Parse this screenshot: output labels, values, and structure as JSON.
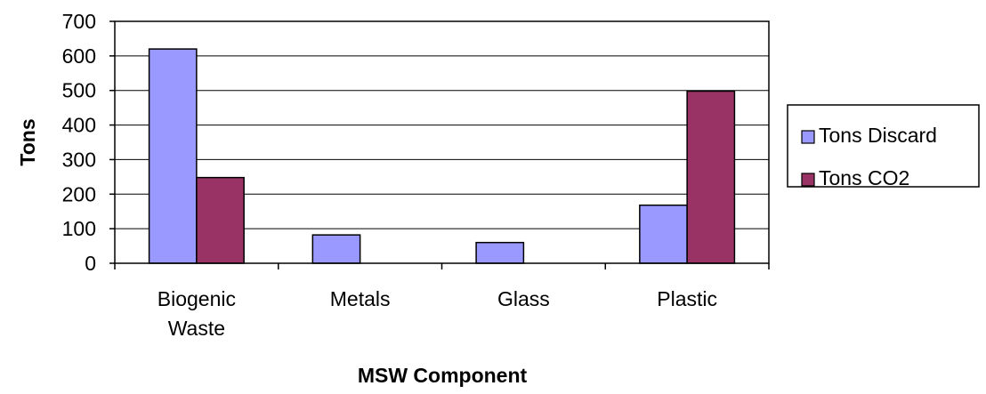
{
  "chart_data": {
    "type": "bar",
    "title": "",
    "xlabel": "MSW Component",
    "ylabel": "Tons",
    "ylim": [
      0,
      700
    ],
    "yticks": [
      "0",
      "100",
      "200",
      "300",
      "400",
      "500",
      "600",
      "700"
    ],
    "grid": true,
    "legend_position": "right",
    "categories": [
      [
        "Biogenic",
        "Waste"
      ],
      [
        "Metals"
      ],
      [
        "Glass"
      ],
      [
        "Plastic"
      ]
    ],
    "series": [
      {
        "name": "Tons Discard",
        "color": "#9999FF",
        "values": [
          620,
          82,
          60,
          168
        ]
      },
      {
        "name": "Tons CO2",
        "color": "#993366",
        "values": [
          248,
          0,
          0,
          498
        ]
      }
    ]
  }
}
